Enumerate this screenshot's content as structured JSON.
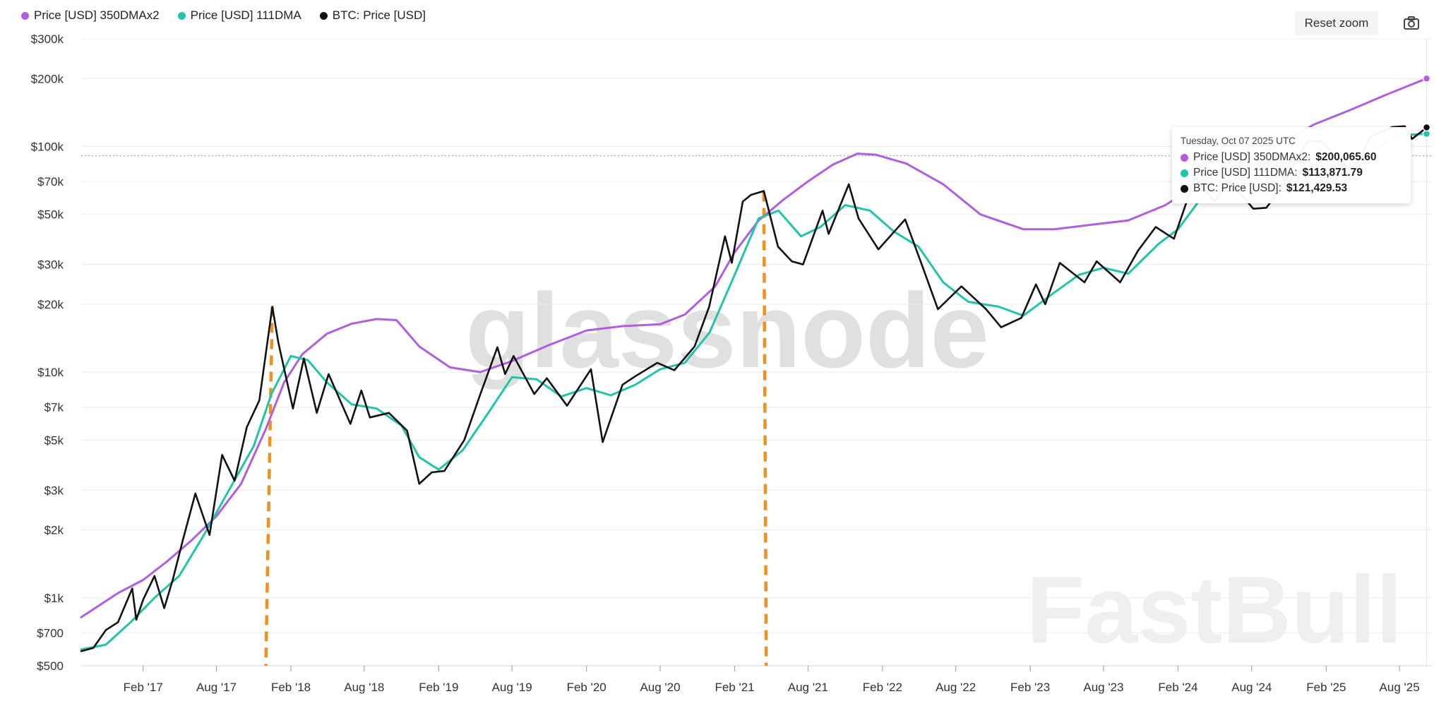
{
  "legend": {
    "items": [
      {
        "label": "Price [USD] 350DMAx2",
        "color": "#b05ee0"
      },
      {
        "label": "Price [USD] 111DMA",
        "color": "#1fc5a9"
      },
      {
        "label": "BTC: Price [USD]",
        "color": "#111111"
      }
    ]
  },
  "toolbar": {
    "reset_label": "Reset zoom",
    "camera_icon": "camera-icon"
  },
  "watermarks": {
    "primary": "glassnode",
    "secondary": "FastBull"
  },
  "tooltip": {
    "date": "Tuesday, Oct 07 2025 UTC",
    "rows": [
      {
        "label": "Price [USD] 350DMAx2:",
        "value": "$200,065.60",
        "color": "#b05ee0"
      },
      {
        "label": "Price [USD] 111DMA:",
        "value": "$113,871.79",
        "color": "#1fc5a9"
      },
      {
        "label": "BTC: Price [USD]:",
        "value": "$121,429.53",
        "color": "#111111"
      }
    ]
  },
  "chart_data": {
    "type": "line",
    "title": "",
    "xlabel": "",
    "ylabel": "",
    "y_scale": "log",
    "ylim": [
      500,
      300000
    ],
    "xlim": [
      "2016-09-01",
      "2025-10-20"
    ],
    "x_ticks": [
      {
        "date": "2017-02-01",
        "label": "Feb '17"
      },
      {
        "date": "2017-08-01",
        "label": "Aug '17"
      },
      {
        "date": "2018-02-01",
        "label": "Feb '18"
      },
      {
        "date": "2018-08-01",
        "label": "Aug '18"
      },
      {
        "date": "2019-02-01",
        "label": "Feb '19"
      },
      {
        "date": "2019-08-01",
        "label": "Aug '19"
      },
      {
        "date": "2020-02-01",
        "label": "Feb '20"
      },
      {
        "date": "2020-08-01",
        "label": "Aug '20"
      },
      {
        "date": "2021-02-01",
        "label": "Feb '21"
      },
      {
        "date": "2021-08-01",
        "label": "Aug '21"
      },
      {
        "date": "2022-02-01",
        "label": "Feb '22"
      },
      {
        "date": "2022-08-01",
        "label": "Aug '22"
      },
      {
        "date": "2023-02-01",
        "label": "Feb '23"
      },
      {
        "date": "2023-08-01",
        "label": "Aug '23"
      },
      {
        "date": "2024-02-01",
        "label": "Feb '24"
      },
      {
        "date": "2024-08-01",
        "label": "Aug '24"
      },
      {
        "date": "2025-02-01",
        "label": "Feb '25"
      },
      {
        "date": "2025-08-01",
        "label": "Aug '25"
      }
    ],
    "y_ticks": [
      {
        "value": 500,
        "label": "$500"
      },
      {
        "value": 700,
        "label": "$700"
      },
      {
        "value": 1000,
        "label": "$1k"
      },
      {
        "value": 2000,
        "label": "$2k"
      },
      {
        "value": 3000,
        "label": "$3k"
      },
      {
        "value": 5000,
        "label": "$5k"
      },
      {
        "value": 7000,
        "label": "$7k"
      },
      {
        "value": 10000,
        "label": "$10k"
      },
      {
        "value": 20000,
        "label": "$20k"
      },
      {
        "value": 30000,
        "label": "$30k"
      },
      {
        "value": 50000,
        "label": "$50k"
      },
      {
        "value": 70000,
        "label": "$70k"
      },
      {
        "value": 100000,
        "label": "$100k"
      },
      {
        "value": 200000,
        "label": "$200k"
      },
      {
        "value": 300000,
        "label": "$300k"
      }
    ],
    "grid": true,
    "legend_position": "top-left",
    "crosshair_value": 91000,
    "annotations": [
      {
        "type": "vertical-dashed",
        "x_top": "2017-12-17",
        "x_bottom": "2017-12-01",
        "y_top": 19500,
        "color": "#f0901e"
      },
      {
        "type": "vertical-dashed",
        "x_top": "2021-04-14",
        "x_bottom": "2021-04-20",
        "y_top": 63000,
        "color": "#f0901e"
      }
    ],
    "series": [
      {
        "name": "Price [USD] 350DMAx2",
        "color": "#b05ee0",
        "points": [
          [
            "2016-09-01",
            820
          ],
          [
            "2016-12-01",
            1050
          ],
          [
            "2017-02-01",
            1200
          ],
          [
            "2017-04-01",
            1450
          ],
          [
            "2017-06-01",
            1800
          ],
          [
            "2017-08-01",
            2300
          ],
          [
            "2017-10-01",
            3200
          ],
          [
            "2017-12-01",
            5600
          ],
          [
            "2018-01-15",
            9000
          ],
          [
            "2018-03-01",
            12000
          ],
          [
            "2018-05-01",
            14800
          ],
          [
            "2018-07-01",
            16400
          ],
          [
            "2018-09-01",
            17200
          ],
          [
            "2018-10-20",
            17000
          ],
          [
            "2018-12-15",
            13000
          ],
          [
            "2019-03-01",
            10500
          ],
          [
            "2019-05-15",
            10000
          ],
          [
            "2019-08-01",
            11200
          ],
          [
            "2019-11-01",
            13200
          ],
          [
            "2020-02-01",
            15300
          ],
          [
            "2020-05-01",
            16000
          ],
          [
            "2020-08-01",
            16300
          ],
          [
            "2020-10-01",
            18000
          ],
          [
            "2020-12-15",
            24000
          ],
          [
            "2021-02-01",
            34000
          ],
          [
            "2021-04-01",
            47000
          ],
          [
            "2021-06-01",
            58000
          ],
          [
            "2021-08-01",
            70000
          ],
          [
            "2021-10-01",
            83000
          ],
          [
            "2021-12-01",
            93000
          ],
          [
            "2022-01-15",
            92000
          ],
          [
            "2022-04-01",
            84000
          ],
          [
            "2022-07-01",
            68000
          ],
          [
            "2022-10-01",
            50000
          ],
          [
            "2023-01-15",
            43000
          ],
          [
            "2023-04-01",
            43000
          ],
          [
            "2023-07-01",
            45000
          ],
          [
            "2023-10-01",
            47000
          ],
          [
            "2024-01-01",
            55000
          ],
          [
            "2024-04-01",
            70000
          ],
          [
            "2024-07-01",
            85000
          ],
          [
            "2024-10-01",
            100000
          ],
          [
            "2025-01-01",
            125000
          ],
          [
            "2025-04-01",
            145000
          ],
          [
            "2025-07-01",
            170000
          ],
          [
            "2025-10-07",
            200066
          ]
        ]
      },
      {
        "name": "Price [USD] 111DMA",
        "color": "#1fc5a9",
        "points": [
          [
            "2016-09-01",
            590
          ],
          [
            "2016-11-01",
            620
          ],
          [
            "2017-01-01",
            780
          ],
          [
            "2017-03-01",
            1000
          ],
          [
            "2017-05-01",
            1250
          ],
          [
            "2017-07-01",
            1900
          ],
          [
            "2017-09-01",
            3000
          ],
          [
            "2017-11-01",
            4700
          ],
          [
            "2017-12-15",
            8000
          ],
          [
            "2018-02-01",
            11800
          ],
          [
            "2018-03-15",
            11300
          ],
          [
            "2018-05-01",
            9000
          ],
          [
            "2018-07-01",
            7200
          ],
          [
            "2018-09-01",
            6900
          ],
          [
            "2018-11-01",
            5800
          ],
          [
            "2018-12-15",
            4200
          ],
          [
            "2019-02-01",
            3700
          ],
          [
            "2019-04-01",
            4500
          ],
          [
            "2019-06-01",
            6500
          ],
          [
            "2019-08-01",
            9500
          ],
          [
            "2019-10-01",
            9300
          ],
          [
            "2019-12-01",
            7800
          ],
          [
            "2020-02-01",
            8500
          ],
          [
            "2020-04-01",
            7900
          ],
          [
            "2020-06-01",
            8800
          ],
          [
            "2020-08-01",
            10300
          ],
          [
            "2020-10-01",
            11000
          ],
          [
            "2020-12-01",
            15000
          ],
          [
            "2021-02-01",
            27000
          ],
          [
            "2021-04-01",
            48000
          ],
          [
            "2021-05-20",
            52000
          ],
          [
            "2021-07-15",
            40000
          ],
          [
            "2021-09-01",
            44000
          ],
          [
            "2021-11-01",
            55000
          ],
          [
            "2022-01-01",
            52000
          ],
          [
            "2022-03-01",
            42000
          ],
          [
            "2022-05-01",
            36000
          ],
          [
            "2022-07-01",
            25000
          ],
          [
            "2022-09-01",
            20500
          ],
          [
            "2022-11-15",
            19500
          ],
          [
            "2023-01-15",
            17800
          ],
          [
            "2023-04-01",
            22500
          ],
          [
            "2023-06-01",
            27000
          ],
          [
            "2023-08-01",
            29000
          ],
          [
            "2023-10-01",
            27300
          ],
          [
            "2023-12-15",
            37000
          ],
          [
            "2024-02-01",
            43000
          ],
          [
            "2024-04-01",
            60000
          ],
          [
            "2024-06-01",
            66000
          ],
          [
            "2024-08-01",
            63000
          ],
          [
            "2024-10-01",
            61000
          ],
          [
            "2024-12-15",
            85000
          ],
          [
            "2025-02-01",
            97000
          ],
          [
            "2025-04-01",
            88000
          ],
          [
            "2025-06-01",
            98000
          ],
          [
            "2025-08-01",
            112000
          ],
          [
            "2025-10-07",
            113872
          ]
        ]
      },
      {
        "name": "BTC: Price [USD]",
        "color": "#111111",
        "points": [
          [
            "2016-09-01",
            580
          ],
          [
            "2016-10-01",
            600
          ],
          [
            "2016-11-01",
            720
          ],
          [
            "2016-12-01",
            780
          ],
          [
            "2017-01-05",
            1100
          ],
          [
            "2017-01-15",
            800
          ],
          [
            "2017-02-01",
            980
          ],
          [
            "2017-03-01",
            1250
          ],
          [
            "2017-03-25",
            900
          ],
          [
            "2017-04-15",
            1200
          ],
          [
            "2017-05-10",
            1800
          ],
          [
            "2017-06-10",
            2900
          ],
          [
            "2017-07-15",
            1900
          ],
          [
            "2017-08-15",
            4300
          ],
          [
            "2017-09-15",
            3300
          ],
          [
            "2017-10-15",
            5700
          ],
          [
            "2017-11-15",
            7500
          ],
          [
            "2017-12-17",
            19500
          ],
          [
            "2018-01-01",
            13500
          ],
          [
            "2018-02-06",
            6900
          ],
          [
            "2018-03-05",
            11500
          ],
          [
            "2018-04-06",
            6600
          ],
          [
            "2018-05-05",
            9800
          ],
          [
            "2018-06-28",
            5900
          ],
          [
            "2018-07-25",
            8300
          ],
          [
            "2018-08-15",
            6300
          ],
          [
            "2018-10-01",
            6600
          ],
          [
            "2018-11-15",
            5500
          ],
          [
            "2018-12-15",
            3200
          ],
          [
            "2019-01-15",
            3600
          ],
          [
            "2019-02-15",
            3650
          ],
          [
            "2019-04-05",
            5000
          ],
          [
            "2019-05-15",
            8000
          ],
          [
            "2019-06-26",
            12900
          ],
          [
            "2019-07-15",
            9800
          ],
          [
            "2019-08-05",
            11800
          ],
          [
            "2019-09-25",
            8000
          ],
          [
            "2019-10-26",
            9400
          ],
          [
            "2019-12-15",
            7100
          ],
          [
            "2020-02-12",
            10300
          ],
          [
            "2020-03-12",
            4900
          ],
          [
            "2020-04-30",
            8800
          ],
          [
            "2020-06-01",
            9600
          ],
          [
            "2020-07-25",
            11000
          ],
          [
            "2020-09-05",
            10200
          ],
          [
            "2020-10-25",
            13000
          ],
          [
            "2020-11-30",
            19500
          ],
          [
            "2021-01-08",
            40000
          ],
          [
            "2021-01-25",
            30500
          ],
          [
            "2021-02-21",
            57000
          ],
          [
            "2021-03-13",
            61000
          ],
          [
            "2021-04-14",
            63500
          ],
          [
            "2021-05-19",
            36000
          ],
          [
            "2021-06-22",
            31000
          ],
          [
            "2021-07-20",
            30000
          ],
          [
            "2021-09-06",
            52000
          ],
          [
            "2021-09-21",
            41000
          ],
          [
            "2021-11-10",
            68000
          ],
          [
            "2021-12-04",
            48000
          ],
          [
            "2022-01-22",
            35000
          ],
          [
            "2022-03-29",
            47500
          ],
          [
            "2022-05-12",
            29000
          ],
          [
            "2022-06-18",
            19000
          ],
          [
            "2022-08-15",
            24000
          ],
          [
            "2022-10-15",
            19000
          ],
          [
            "2022-11-21",
            15800
          ],
          [
            "2023-01-10",
            17400
          ],
          [
            "2023-02-15",
            24500
          ],
          [
            "2023-03-10",
            20000
          ],
          [
            "2023-04-15",
            30500
          ],
          [
            "2023-06-15",
            25000
          ],
          [
            "2023-07-15",
            31000
          ],
          [
            "2023-09-11",
            25000
          ],
          [
            "2023-10-25",
            34500
          ],
          [
            "2023-12-08",
            44000
          ],
          [
            "2024-01-22",
            39000
          ],
          [
            "2024-03-14",
            73000
          ],
          [
            "2024-05-01",
            57000
          ],
          [
            "2024-06-05",
            71000
          ],
          [
            "2024-08-05",
            53000
          ],
          [
            "2024-09-06",
            53500
          ],
          [
            "2024-10-15",
            66000
          ],
          [
            "2024-12-17",
            106000
          ],
          [
            "2025-01-21",
            105000
          ],
          [
            "2025-04-08",
            76000
          ],
          [
            "2025-05-22",
            111000
          ],
          [
            "2025-07-14",
            122000
          ],
          [
            "2025-08-14",
            123000
          ],
          [
            "2025-09-01",
            108000
          ],
          [
            "2025-10-07",
            121430
          ]
        ]
      }
    ]
  }
}
